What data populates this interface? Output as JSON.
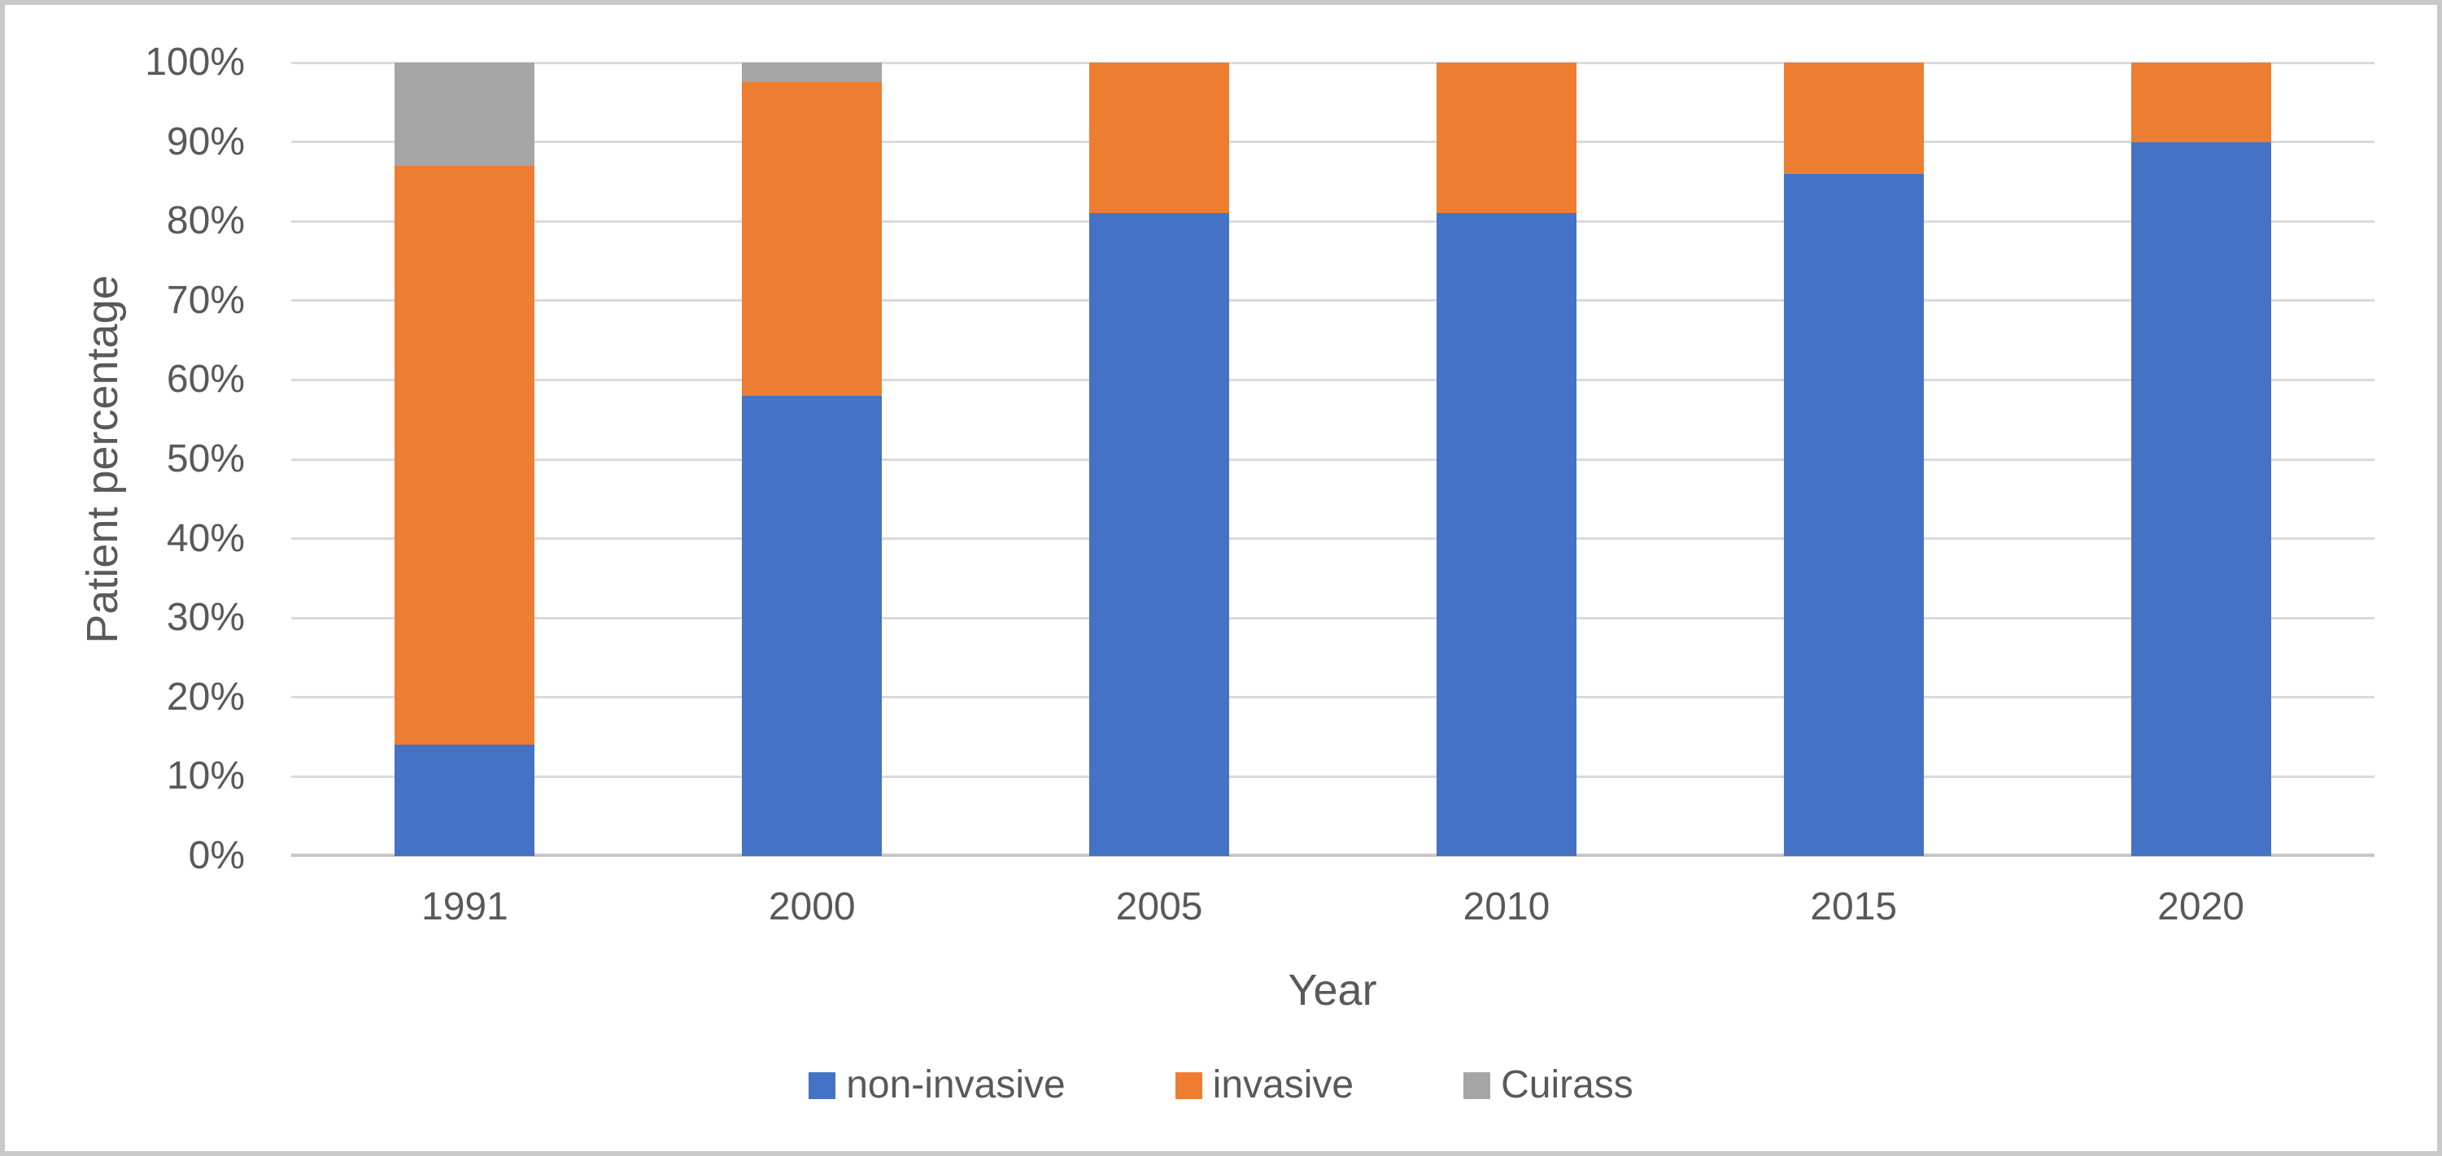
{
  "chart_data": {
    "type": "bar",
    "subtype": "stacked-100-column",
    "title": "",
    "xlabel": "Year",
    "ylabel": "Patient percentage",
    "categories": [
      "1991",
      "2000",
      "2005",
      "2010",
      "2015",
      "2020"
    ],
    "series": [
      {
        "name": "non-invasive",
        "color": "#4472C4",
        "values": [
          14,
          58,
          81,
          81,
          86,
          90
        ]
      },
      {
        "name": "invasive",
        "color": "#ED7D31",
        "values": [
          73,
          39.5,
          19,
          19,
          14,
          10
        ]
      },
      {
        "name": "Cuirass",
        "color": "#A5A5A5",
        "values": [
          13,
          2.5,
          0,
          0,
          0,
          0
        ]
      }
    ],
    "unit": "%",
    "ylim": [
      0,
      100
    ],
    "y_tick_step": 10,
    "y_tick_labels": [
      "0%",
      "10%",
      "20%",
      "30%",
      "40%",
      "50%",
      "60%",
      "70%",
      "80%",
      "90%",
      "100%"
    ],
    "grid": "horizontal",
    "legend_position": "bottom"
  },
  "colors": {
    "text": "#595959",
    "gridline": "#DADADA",
    "axis_line": "#C6C6C6",
    "figure_border": "#C9C9C9",
    "background": "#FFFFFF"
  }
}
